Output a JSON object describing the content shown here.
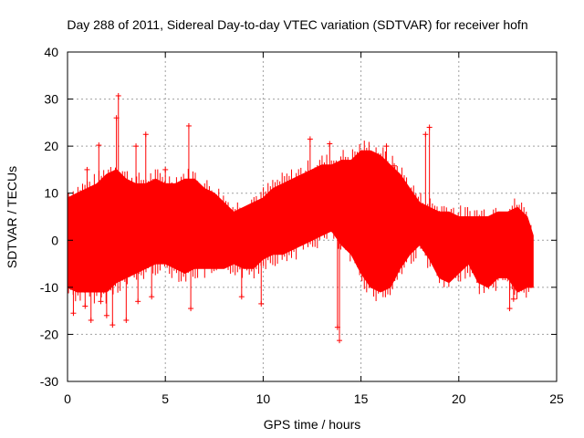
{
  "chart_data": {
    "type": "scatter",
    "title": "Day 288 of 2011, Sidereal Day-to-day VTEC variation (SDTVAR) for receiver hofn",
    "xlabel": "GPS time / hours",
    "ylabel": "SDTVAR / TECUs",
    "xlim": [
      0,
      25
    ],
    "ylim": [
      -30,
      40
    ],
    "xticks": [
      0,
      5,
      10,
      15,
      20,
      25
    ],
    "yticks": [
      -30,
      -20,
      -10,
      0,
      10,
      20,
      30,
      40
    ],
    "grid": true,
    "marker": "+",
    "color": "#ff0000",
    "envelope": {
      "x": [
        0.0,
        0.5,
        1.0,
        1.5,
        2.0,
        2.5,
        3.0,
        3.5,
        4.0,
        4.5,
        5.0,
        5.5,
        6.0,
        6.5,
        7.0,
        7.5,
        8.0,
        8.5,
        9.0,
        9.5,
        10.0,
        10.5,
        11.0,
        11.5,
        12.0,
        12.5,
        13.0,
        13.5,
        14.0,
        14.5,
        15.0,
        15.5,
        16.0,
        16.5,
        17.0,
        17.5,
        18.0,
        18.5,
        19.0,
        19.5,
        20.0,
        20.5,
        21.0,
        21.5,
        22.0,
        22.5,
        23.0,
        23.5,
        23.8
      ],
      "upper": [
        9,
        10,
        11,
        12,
        14,
        15,
        13,
        12,
        12,
        13,
        12,
        12,
        13,
        13,
        11,
        10,
        8,
        6,
        7,
        8,
        9,
        11,
        12,
        13,
        14,
        15,
        16,
        16,
        17,
        17,
        19,
        19,
        18,
        16,
        14,
        11,
        8,
        7,
        6,
        6,
        5,
        5,
        5,
        5,
        6,
        6,
        7,
        5,
        1
      ],
      "lower": [
        -10,
        -11,
        -11,
        -11,
        -11,
        -9,
        -8,
        -7,
        -6,
        -5,
        -5,
        -6,
        -7,
        -6,
        -6,
        -6,
        -6,
        -5,
        -6,
        -6,
        -4,
        -3,
        -3,
        -2,
        -1,
        0,
        1,
        2,
        -1,
        -3,
        -7,
        -10,
        -11,
        -10,
        -6,
        -3,
        -1,
        -4,
        -8,
        -9,
        -7,
        -5,
        -9,
        -10,
        -8,
        -8,
        -11,
        -10,
        -10
      ]
    },
    "outliers": [
      {
        "x": 0.3,
        "y": -15.5
      },
      {
        "x": 0.9,
        "y": -14
      },
      {
        "x": 1.0,
        "y": 15
      },
      {
        "x": 1.2,
        "y": -17
      },
      {
        "x": 1.6,
        "y": 20.2
      },
      {
        "x": 1.7,
        "y": -13
      },
      {
        "x": 2.0,
        "y": -16
      },
      {
        "x": 2.3,
        "y": -18
      },
      {
        "x": 2.5,
        "y": 26
      },
      {
        "x": 2.6,
        "y": 30.7
      },
      {
        "x": 3.0,
        "y": -17
      },
      {
        "x": 3.5,
        "y": 20
      },
      {
        "x": 3.6,
        "y": -13
      },
      {
        "x": 4.0,
        "y": 22.5
      },
      {
        "x": 4.3,
        "y": -12
      },
      {
        "x": 5.0,
        "y": 15
      },
      {
        "x": 6.2,
        "y": 24.3
      },
      {
        "x": 6.3,
        "y": -14.5
      },
      {
        "x": 8.9,
        "y": -12
      },
      {
        "x": 9.9,
        "y": -13.5
      },
      {
        "x": 12.4,
        "y": 21.5
      },
      {
        "x": 13.4,
        "y": 20.5
      },
      {
        "x": 13.8,
        "y": -18.5
      },
      {
        "x": 13.9,
        "y": -21.3
      },
      {
        "x": 16.3,
        "y": 20
      },
      {
        "x": 16.7,
        "y": 15.8
      },
      {
        "x": 18.5,
        "y": 24
      },
      {
        "x": 18.3,
        "y": 22.5
      },
      {
        "x": 22.6,
        "y": -14.5
      },
      {
        "x": 22.8,
        "y": -12.5
      }
    ]
  }
}
